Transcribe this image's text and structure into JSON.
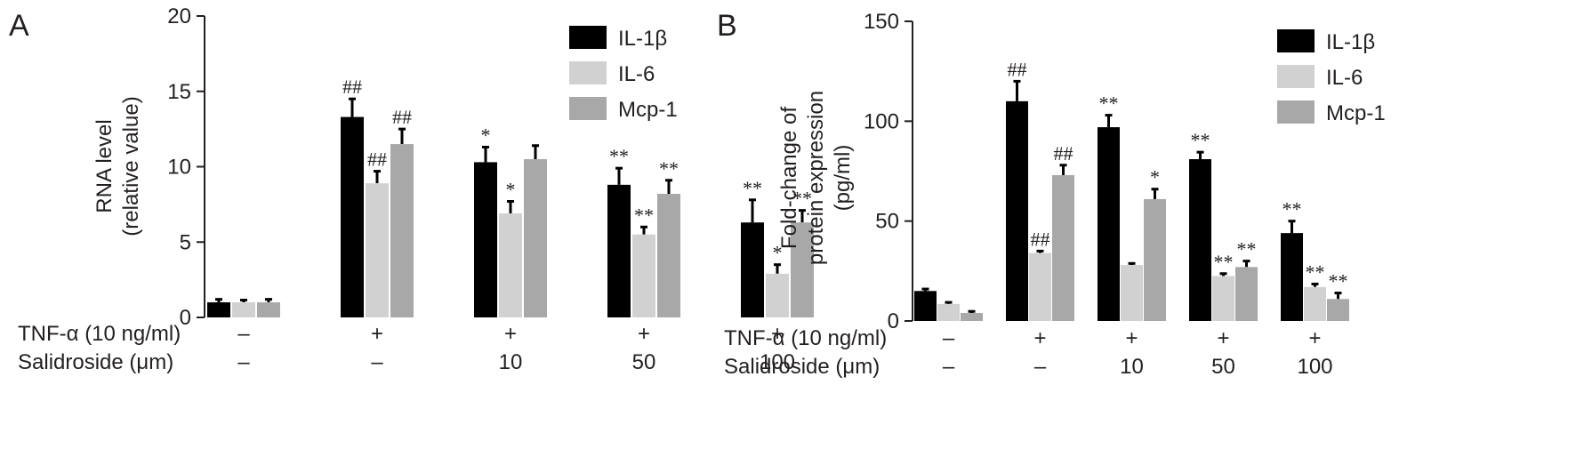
{
  "colors": {
    "IL-1β": "#000000",
    "IL-6": "#d1d1d1",
    "Mcp-1": "#a8a8a8"
  },
  "row_labels": [
    "TNF-α (10 ng/ml)",
    "Salidroside (μm)"
  ],
  "chart_data": [
    {
      "type": "bar",
      "panel": "A",
      "ylabel": [
        "RNA level",
        "(relative value)"
      ],
      "ylim": [
        0,
        20
      ],
      "yticks": [
        0,
        5,
        10,
        15,
        20
      ],
      "legend_position": "top-right",
      "categories": [
        "1",
        "2",
        "3",
        "4",
        "5"
      ],
      "tnf_alpha": [
        "–",
        "+",
        "+",
        "+",
        "+"
      ],
      "salidroside": [
        "–",
        "–",
        "10",
        "50",
        "100"
      ],
      "series": [
        {
          "name": "IL-1β",
          "values": [
            1.0,
            13.3,
            10.3,
            8.8,
            6.3
          ],
          "errors": [
            0.2,
            1.2,
            1.0,
            1.1,
            1.5
          ],
          "annotations": [
            "",
            "##",
            "*",
            "**",
            "**"
          ]
        },
        {
          "name": "IL-6",
          "values": [
            1.0,
            8.9,
            6.9,
            5.5,
            2.9
          ],
          "errors": [
            0.15,
            0.8,
            0.8,
            0.5,
            0.6
          ],
          "annotations": [
            "",
            "##",
            "*",
            "**",
            "*"
          ]
        },
        {
          "name": "Mcp-1",
          "values": [
            1.0,
            11.5,
            10.5,
            8.2,
            6.3
          ],
          "errors": [
            0.2,
            1.0,
            0.9,
            0.9,
            0.8
          ],
          "annotations": [
            "",
            "##",
            "",
            "**",
            "**"
          ]
        }
      ]
    },
    {
      "type": "bar",
      "panel": "B",
      "ylabel": [
        "Fold-change of",
        "protein expression",
        "(pg/ml)"
      ],
      "ylim": [
        0,
        150
      ],
      "yticks": [
        0,
        50,
        100,
        150
      ],
      "legend_position": "top-right",
      "categories": [
        "1",
        "2",
        "3",
        "4",
        "5"
      ],
      "tnf_alpha": [
        "–",
        "+",
        "+",
        "+",
        "+"
      ],
      "salidroside": [
        "–",
        "–",
        "10",
        "50",
        "100"
      ],
      "series": [
        {
          "name": "IL-1β",
          "values": [
            15,
            110,
            97,
            81,
            44
          ],
          "errors": [
            1.0,
            10,
            6,
            3.5,
            6
          ],
          "annotations": [
            "",
            "##",
            "**",
            "**",
            "**"
          ]
        },
        {
          "name": "IL-6",
          "values": [
            8.5,
            34,
            28,
            22.5,
            17
          ],
          "errors": [
            0.8,
            1.0,
            0.8,
            1.2,
            1.5
          ],
          "annotations": [
            "",
            "##",
            "",
            "**",
            "**"
          ]
        },
        {
          "name": "Mcp-1",
          "values": [
            4,
            73,
            61,
            27,
            11
          ],
          "errors": [
            0.8,
            5,
            5,
            3,
            3
          ],
          "annotations": [
            "",
            "##",
            "*",
            "**",
            "**"
          ]
        }
      ]
    }
  ]
}
